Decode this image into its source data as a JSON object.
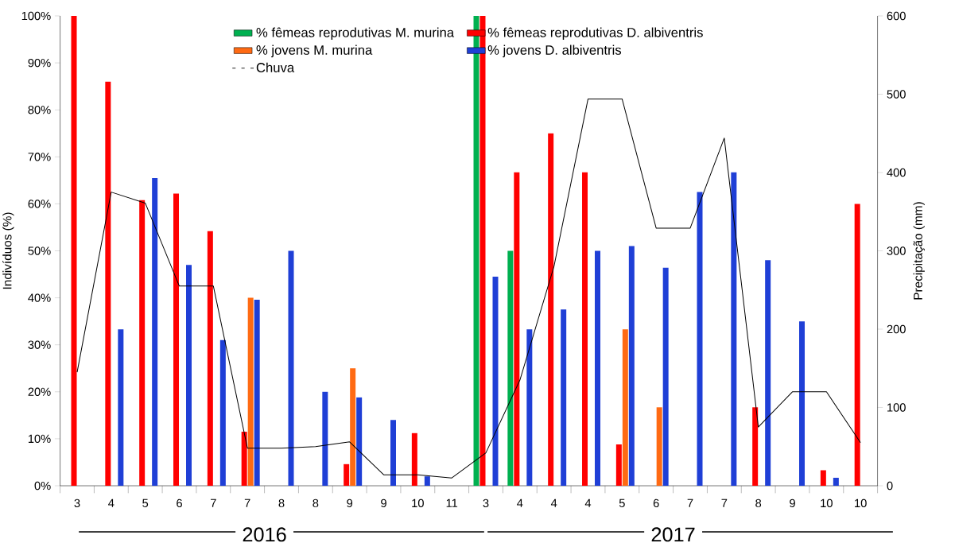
{
  "chart_data": {
    "type": "bar",
    "ylabel": "Indivíduos (%)",
    "y2label": "Precipitação (mm)",
    "legend": "top",
    "categories": [
      "3",
      "4",
      "5",
      "6",
      "7",
      "7",
      "8",
      "8",
      "9",
      "9",
      "10",
      "11",
      "3",
      "4",
      "4",
      "4",
      "5",
      "6",
      "7",
      "7",
      "8",
      "9",
      "10",
      "10"
    ],
    "series": [
      {
        "name": "% fêmeas reprodutivas M. murina",
        "color": "#00b050",
        "values": [
          null,
          null,
          null,
          null,
          null,
          null,
          null,
          null,
          null,
          null,
          null,
          null,
          100,
          50,
          null,
          null,
          null,
          null,
          null,
          null,
          null,
          null,
          null,
          null
        ]
      },
      {
        "name": "% fêmeas reprodutivas D. albiventris",
        "color": "#ff0000",
        "values": [
          100,
          86,
          60.8,
          62.2,
          54.2,
          11.5,
          null,
          null,
          4.6,
          null,
          11.2,
          null,
          100,
          66.7,
          75,
          66.7,
          8.8,
          null,
          null,
          null,
          16.7,
          null,
          3.3,
          60
        ]
      },
      {
        "name": "% jovens M. murina",
        "color": "#ff6a13",
        "values": [
          null,
          null,
          null,
          null,
          null,
          40,
          null,
          null,
          25,
          null,
          null,
          null,
          null,
          null,
          null,
          null,
          33.3,
          16.7,
          null,
          null,
          null,
          null,
          null,
          null
        ]
      },
      {
        "name": "% jovens D. albiventris",
        "color": "#1f3fd6",
        "values": [
          null,
          33.3,
          65.5,
          47,
          31,
          39.6,
          50,
          20,
          18.8,
          14,
          2,
          null,
          44.5,
          33.3,
          37.5,
          50,
          51,
          46.4,
          62.5,
          66.7,
          48,
          35,
          1.7,
          null
        ]
      },
      {
        "name": "Chuva",
        "type": "line",
        "axis": "y2",
        "color": "#000000",
        "values": [
          145,
          375,
          361,
          255,
          255,
          48,
          48,
          50,
          56,
          14,
          14,
          10,
          42,
          135,
          280,
          494,
          494,
          329,
          329,
          444,
          75,
          120,
          120,
          55
        ]
      }
    ],
    "ylim": [
      0,
      100
    ],
    "yticks": [
      {
        "value": 0,
        "label": "0%"
      },
      {
        "value": 10,
        "label": "10%"
      },
      {
        "value": 20,
        "label": "20%"
      },
      {
        "value": 30,
        "label": "30%"
      },
      {
        "value": 40,
        "label": "40%"
      },
      {
        "value": 50,
        "label": "50%"
      },
      {
        "value": 60,
        "label": "60%"
      },
      {
        "value": 70,
        "label": "70%"
      },
      {
        "value": 80,
        "label": "80%"
      },
      {
        "value": 90,
        "label": "90%"
      },
      {
        "value": 100,
        "label": "100%"
      }
    ],
    "y2lim": [
      0,
      600
    ],
    "y2ticks": [
      0,
      100,
      200,
      300,
      400,
      500,
      600
    ],
    "annotations": [
      "2016",
      "2017"
    ]
  }
}
